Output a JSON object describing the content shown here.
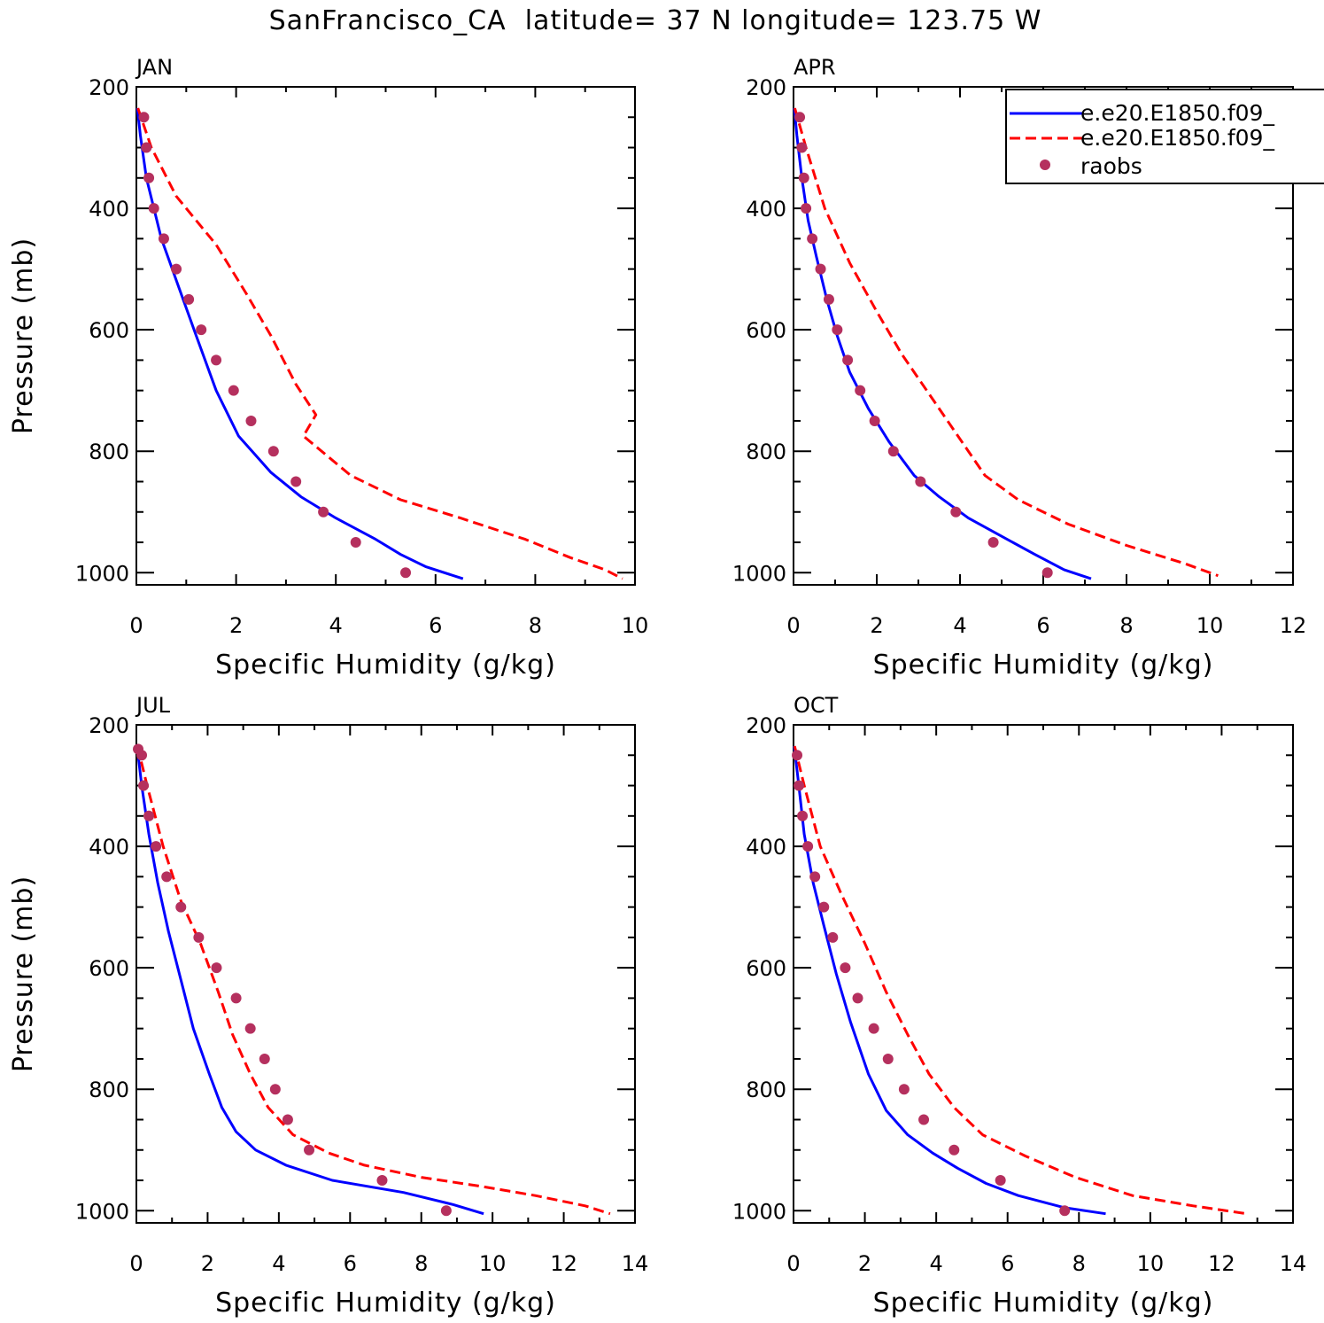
{
  "figure": {
    "title": "SanFrancisco_CA  latitude= 37 N longitude= 123.75 W"
  },
  "legend": {
    "entries": [
      {
        "label": "e.e20.E1850.f09_",
        "style": "solid",
        "color": "#0000ff"
      },
      {
        "label": "e.e20.E1850.f09_",
        "style": "dashed",
        "color": "#ff0000"
      },
      {
        "label": "raobs",
        "style": "marker",
        "color": "#b5305e"
      }
    ]
  },
  "colors": {
    "model1": "#0000ff",
    "model2": "#ff0000",
    "raobs": "#b5305e"
  },
  "chart_data": [
    {
      "type": "line",
      "title": "JAN",
      "xlabel": "Specific Humidity (g/kg)",
      "ylabel": "Pressure (mb)",
      "xlim": [
        0,
        10
      ],
      "ylim": [
        200,
        1000
      ],
      "y_inverted": true,
      "x_ticks": [
        0,
        2,
        4,
        6,
        8,
        10
      ],
      "y_ticks": [
        200,
        400,
        600,
        800,
        1000
      ],
      "series": [
        {
          "name": "e.e20.E1850.f09_",
          "style": "solid",
          "color": "#0000ff",
          "points": [
            [
              0.02,
              235
            ],
            [
              0.08,
              280
            ],
            [
              0.2,
              350
            ],
            [
              0.5,
              450
            ],
            [
              0.85,
              530
            ],
            [
              1.2,
              610
            ],
            [
              1.6,
              700
            ],
            [
              2.05,
              775
            ],
            [
              2.7,
              835
            ],
            [
              3.3,
              875
            ],
            [
              4.0,
              910
            ],
            [
              4.8,
              945
            ],
            [
              5.3,
              970
            ],
            [
              5.8,
              990
            ],
            [
              6.55,
              1010
            ]
          ]
        },
        {
          "name": "e.e20.E1850.f09_",
          "style": "dashed",
          "color": "#ff0000",
          "points": [
            [
              0.03,
              235
            ],
            [
              0.3,
              300
            ],
            [
              0.8,
              380
            ],
            [
              1.6,
              460
            ],
            [
              2.2,
              540
            ],
            [
              2.7,
              610
            ],
            [
              3.2,
              690
            ],
            [
              3.6,
              740
            ],
            [
              3.35,
              775
            ],
            [
              4.3,
              840
            ],
            [
              5.3,
              880
            ],
            [
              6.5,
              910
            ],
            [
              7.8,
              945
            ],
            [
              8.7,
              975
            ],
            [
              9.4,
              995
            ],
            [
              9.75,
              1010
            ]
          ]
        },
        {
          "name": "raobs",
          "style": "marker",
          "color": "#b5305e",
          "points": [
            [
              0.15,
              250
            ],
            [
              0.2,
              300
            ],
            [
              0.25,
              350
            ],
            [
              0.35,
              400
            ],
            [
              0.55,
              450
            ],
            [
              0.8,
              500
            ],
            [
              1.05,
              550
            ],
            [
              1.3,
              600
            ],
            [
              1.6,
              650
            ],
            [
              1.95,
              700
            ],
            [
              2.3,
              750
            ],
            [
              2.75,
              800
            ],
            [
              3.2,
              850
            ],
            [
              3.75,
              900
            ],
            [
              4.4,
              950
            ],
            [
              5.4,
              1000
            ]
          ]
        }
      ]
    },
    {
      "type": "line",
      "title": "APR",
      "xlabel": "Specific Humidity (g/kg)",
      "ylabel": "",
      "xlim": [
        0,
        12
      ],
      "ylim": [
        200,
        1000
      ],
      "y_inverted": true,
      "x_ticks": [
        0,
        2,
        4,
        6,
        8,
        10,
        12
      ],
      "y_ticks": [
        200,
        400,
        600,
        800,
        1000
      ],
      "series": [
        {
          "name": "e.e20.E1850.f09_",
          "style": "solid",
          "color": "#0000ff",
          "points": [
            [
              0.02,
              235
            ],
            [
              0.08,
              280
            ],
            [
              0.2,
              350
            ],
            [
              0.35,
              420
            ],
            [
              0.55,
              480
            ],
            [
              0.8,
              550
            ],
            [
              1.05,
              610
            ],
            [
              1.35,
              670
            ],
            [
              1.8,
              730
            ],
            [
              2.3,
              785
            ],
            [
              2.9,
              840
            ],
            [
              3.5,
              875
            ],
            [
              4.2,
              910
            ],
            [
              5.0,
              940
            ],
            [
              5.8,
              970
            ],
            [
              6.5,
              995
            ],
            [
              7.15,
              1010
            ]
          ]
        },
        {
          "name": "e.e20.E1850.f09_",
          "style": "dashed",
          "color": "#ff0000",
          "points": [
            [
              0.03,
              235
            ],
            [
              0.3,
              300
            ],
            [
              0.75,
              400
            ],
            [
              1.35,
              490
            ],
            [
              2.0,
              570
            ],
            [
              2.6,
              640
            ],
            [
              3.3,
              710
            ],
            [
              3.95,
              775
            ],
            [
              4.6,
              840
            ],
            [
              5.4,
              880
            ],
            [
              6.6,
              920
            ],
            [
              8.0,
              955
            ],
            [
              9.4,
              985
            ],
            [
              10.2,
              1005
            ]
          ]
        },
        {
          "name": "raobs",
          "style": "marker",
          "color": "#b5305e",
          "points": [
            [
              0.15,
              250
            ],
            [
              0.2,
              300
            ],
            [
              0.25,
              350
            ],
            [
              0.3,
              400
            ],
            [
              0.45,
              450
            ],
            [
              0.65,
              500
            ],
            [
              0.85,
              550
            ],
            [
              1.05,
              600
            ],
            [
              1.3,
              650
            ],
            [
              1.6,
              700
            ],
            [
              1.95,
              750
            ],
            [
              2.4,
              800
            ],
            [
              3.05,
              850
            ],
            [
              3.9,
              900
            ],
            [
              4.8,
              950
            ],
            [
              6.1,
              1000
            ]
          ]
        }
      ]
    },
    {
      "type": "line",
      "title": "JUL",
      "xlabel": "Specific Humidity (g/kg)",
      "ylabel": "Pressure (mb)",
      "xlim": [
        0,
        14
      ],
      "ylim": [
        200,
        1000
      ],
      "y_inverted": true,
      "x_ticks": [
        0,
        2,
        4,
        6,
        8,
        10,
        12,
        14
      ],
      "y_ticks": [
        200,
        400,
        600,
        800,
        1000
      ],
      "series": [
        {
          "name": "e.e20.E1850.f09_",
          "style": "solid",
          "color": "#0000ff",
          "points": [
            [
              0.02,
              235
            ],
            [
              0.15,
              300
            ],
            [
              0.35,
              380
            ],
            [
              0.6,
              460
            ],
            [
              0.9,
              540
            ],
            [
              1.25,
              620
            ],
            [
              1.6,
              700
            ],
            [
              2.05,
              775
            ],
            [
              2.4,
              830
            ],
            [
              2.8,
              870
            ],
            [
              3.35,
              900
            ],
            [
              4.2,
              925
            ],
            [
              5.5,
              950
            ],
            [
              7.5,
              970
            ],
            [
              8.9,
              990
            ],
            [
              9.75,
              1005
            ]
          ]
        },
        {
          "name": "e.e20.E1850.f09_",
          "style": "dashed",
          "color": "#ff0000",
          "points": [
            [
              0.03,
              235
            ],
            [
              0.3,
              300
            ],
            [
              0.75,
              400
            ],
            [
              1.25,
              490
            ],
            [
              1.8,
              560
            ],
            [
              2.3,
              640
            ],
            [
              2.7,
              710
            ],
            [
              3.2,
              775
            ],
            [
              3.7,
              830
            ],
            [
              4.4,
              875
            ],
            [
              5.4,
              905
            ],
            [
              6.4,
              925
            ],
            [
              8.0,
              945
            ],
            [
              9.7,
              960
            ],
            [
              11.2,
              975
            ],
            [
              12.6,
              992
            ],
            [
              13.3,
              1005
            ]
          ]
        },
        {
          "name": "raobs",
          "style": "marker",
          "color": "#b5305e",
          "points": [
            [
              0.05,
              240
            ],
            [
              0.15,
              250
            ],
            [
              0.2,
              300
            ],
            [
              0.35,
              350
            ],
            [
              0.55,
              400
            ],
            [
              0.85,
              450
            ],
            [
              1.25,
              500
            ],
            [
              1.75,
              550
            ],
            [
              2.25,
              600
            ],
            [
              2.8,
              650
            ],
            [
              3.2,
              700
            ],
            [
              3.6,
              750
            ],
            [
              3.9,
              800
            ],
            [
              4.25,
              850
            ],
            [
              4.85,
              900
            ],
            [
              6.9,
              950
            ],
            [
              8.7,
              1000
            ]
          ]
        }
      ]
    },
    {
      "type": "line",
      "title": "OCT",
      "xlabel": "Specific Humidity (g/kg)",
      "ylabel": "",
      "xlim": [
        0,
        14
      ],
      "ylim": [
        200,
        1000
      ],
      "y_inverted": true,
      "x_ticks": [
        0,
        2,
        4,
        6,
        8,
        10,
        12,
        14
      ],
      "y_ticks": [
        200,
        400,
        600,
        800,
        1000
      ],
      "series": [
        {
          "name": "e.e20.E1850.f09_",
          "style": "solid",
          "color": "#0000ff",
          "points": [
            [
              0.02,
              235
            ],
            [
              0.15,
              300
            ],
            [
              0.3,
              380
            ],
            [
              0.55,
              460
            ],
            [
              0.85,
              530
            ],
            [
              1.2,
              610
            ],
            [
              1.6,
              690
            ],
            [
              2.1,
              775
            ],
            [
              2.6,
              835
            ],
            [
              3.2,
              875
            ],
            [
              3.9,
              905
            ],
            [
              4.6,
              930
            ],
            [
              5.4,
              955
            ],
            [
              6.3,
              975
            ],
            [
              7.6,
              995
            ],
            [
              8.75,
              1005
            ]
          ]
        },
        {
          "name": "e.e20.E1850.f09_",
          "style": "dashed",
          "color": "#ff0000",
          "points": [
            [
              0.03,
              235
            ],
            [
              0.3,
              300
            ],
            [
              0.75,
              400
            ],
            [
              1.35,
              480
            ],
            [
              2.0,
              560
            ],
            [
              2.6,
              640
            ],
            [
              3.2,
              710
            ],
            [
              3.8,
              775
            ],
            [
              4.5,
              830
            ],
            [
              5.3,
              875
            ],
            [
              6.5,
              910
            ],
            [
              7.9,
              945
            ],
            [
              9.5,
              975
            ],
            [
              11.2,
              992
            ],
            [
              12.7,
              1005
            ]
          ]
        },
        {
          "name": "raobs",
          "style": "marker",
          "color": "#b5305e",
          "points": [
            [
              0.1,
              250
            ],
            [
              0.15,
              300
            ],
            [
              0.25,
              350
            ],
            [
              0.4,
              400
            ],
            [
              0.6,
              450
            ],
            [
              0.85,
              500
            ],
            [
              1.1,
              550
            ],
            [
              1.45,
              600
            ],
            [
              1.8,
              650
            ],
            [
              2.25,
              700
            ],
            [
              2.65,
              750
            ],
            [
              3.1,
              800
            ],
            [
              3.65,
              850
            ],
            [
              4.5,
              900
            ],
            [
              5.8,
              950
            ],
            [
              7.6,
              1000
            ]
          ]
        }
      ]
    }
  ]
}
